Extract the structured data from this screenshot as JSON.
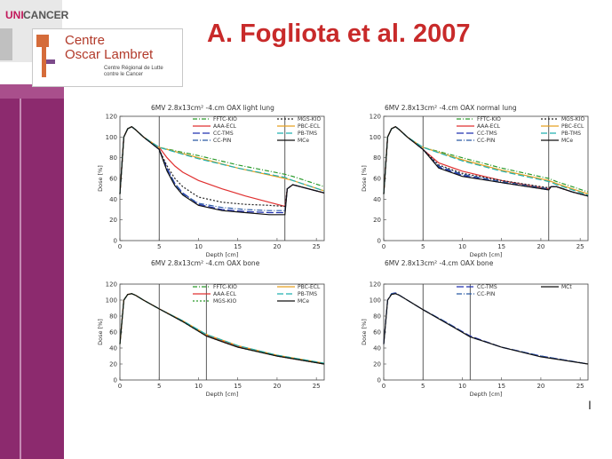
{
  "header": {
    "title": "A. Fogliota et al. 2007",
    "logo_uni": "UNI",
    "logo_cancer": "CANCER",
    "logo_line1": "Centre",
    "logo_line2": "Oscar Lambret",
    "logo_line3": "Centre Régional de Lutte",
    "logo_line4": "contre le Cancer"
  },
  "page_mark": "I",
  "chart_data": [
    {
      "type": "line",
      "title": "6MV 2.8x13cm² -4.cm OAX light lung",
      "xlabel": "Depth [cm]",
      "ylabel": "Dose [%]",
      "xlim": [
        0,
        26
      ],
      "ylim": [
        0,
        120
      ],
      "xticks": [
        0,
        5,
        10,
        15,
        20,
        25
      ],
      "yticks": [
        0,
        20,
        40,
        60,
        80,
        100,
        120
      ],
      "vlines": [
        5,
        21
      ],
      "legend": [
        "FFTC-KIO",
        "AAA-ECL",
        "CC-TMS",
        "CC-PIN",
        "MGS-KIO",
        "PBC-ECL",
        "PB-TMS",
        "MCe"
      ],
      "series": [
        {
          "name": "FFTC-KIO",
          "color": "#2a9a2a",
          "dash": "5,2,1,2",
          "x": [
            0,
            0.5,
            1,
            1.5,
            2,
            3,
            4,
            5,
            10,
            15,
            21,
            22,
            24,
            26
          ],
          "y": [
            45,
            100,
            108,
            110,
            107,
            100,
            95,
            90,
            82,
            73,
            64,
            62,
            57,
            52
          ]
        },
        {
          "name": "AAA-ECL",
          "color": "#e03030",
          "dash": "",
          "x": [
            0,
            0.5,
            1,
            1.5,
            2,
            3,
            4,
            5,
            6,
            7,
            8,
            10,
            13,
            16,
            19,
            21,
            21.3,
            22,
            24,
            26
          ],
          "y": [
            45,
            100,
            108,
            110,
            107,
            100,
            95,
            90,
            80,
            72,
            66,
            58,
            50,
            43,
            37,
            33,
            50,
            54,
            50,
            46
          ]
        },
        {
          "name": "CC-TMS",
          "color": "#2030b0",
          "dash": "8,3",
          "x": [
            0,
            0.5,
            1,
            1.5,
            2,
            3,
            4,
            5,
            6,
            7,
            8,
            10,
            13,
            16,
            19,
            21,
            21.3,
            22,
            24,
            26
          ],
          "y": [
            45,
            100,
            108,
            110,
            107,
            100,
            94,
            88,
            70,
            55,
            46,
            35,
            30,
            28,
            27,
            27,
            50,
            54,
            50,
            46
          ]
        },
        {
          "name": "CC-PIN",
          "color": "#2b5aa5",
          "dash": "6,2,1,2",
          "x": [
            0,
            0.5,
            1,
            1.5,
            2,
            3,
            4,
            5,
            6,
            7,
            8,
            10,
            13,
            16,
            19,
            21,
            21.3,
            22,
            24,
            26
          ],
          "y": [
            45,
            100,
            108,
            110,
            107,
            100,
            94,
            88,
            68,
            55,
            45,
            36,
            32,
            30,
            29,
            29,
            50,
            54,
            50,
            46
          ]
        },
        {
          "name": "MGS-KIO",
          "color": "#222222",
          "dash": "2,2",
          "x": [
            0,
            0.5,
            1,
            1.5,
            2,
            3,
            4,
            5,
            6,
            7,
            8,
            10,
            13,
            16,
            19,
            21,
            21.3,
            22,
            24,
            26
          ],
          "y": [
            45,
            100,
            108,
            110,
            107,
            100,
            94,
            88,
            72,
            60,
            52,
            42,
            37,
            35,
            34,
            33,
            50,
            54,
            50,
            46
          ]
        },
        {
          "name": "PBC-ECL",
          "color": "#e8a020",
          "dash": "",
          "x": [
            0,
            0.5,
            1,
            1.5,
            2,
            3,
            4,
            5,
            10,
            15,
            21,
            22,
            24,
            26
          ],
          "y": [
            45,
            100,
            108,
            110,
            107,
            100,
            95,
            90,
            80,
            70,
            60,
            58,
            53,
            48
          ]
        },
        {
          "name": "PB-TMS",
          "color": "#20b0b0",
          "dash": "7,3",
          "x": [
            0,
            0.5,
            1,
            1.5,
            2,
            3,
            4,
            5,
            10,
            15,
            21,
            22,
            24,
            26
          ],
          "y": [
            45,
            100,
            108,
            110,
            107,
            100,
            95,
            90,
            79,
            70,
            61,
            58,
            53,
            48
          ]
        },
        {
          "name": "MCe",
          "color": "#111111",
          "dash": "",
          "x": [
            0,
            0.5,
            1,
            1.5,
            2,
            3,
            4,
            5,
            6,
            7,
            8,
            10,
            13,
            16,
            19,
            21,
            21.3,
            22,
            24,
            26
          ],
          "y": [
            45,
            100,
            108,
            110,
            107,
            100,
            94,
            88,
            67,
            53,
            44,
            34,
            29,
            27,
            25,
            25,
            50,
            54,
            50,
            46
          ]
        }
      ]
    },
    {
      "type": "line",
      "title": "6MV 2.8x13cm² -4.cm OAX normal lung",
      "xlabel": "Depth [cm]",
      "ylabel": "Dose [%]",
      "xlim": [
        0,
        26
      ],
      "ylim": [
        0,
        120
      ],
      "xticks": [
        0,
        5,
        10,
        15,
        20,
        25
      ],
      "yticks": [
        0,
        20,
        40,
        60,
        80,
        100,
        120
      ],
      "vlines": [
        5,
        21
      ],
      "legend": [
        "FFTC-KIO",
        "AAA-ECL",
        "CC-TMS",
        "CC-PIN",
        "MGS-KIO",
        "PBC-ECL",
        "PB-TMS",
        "MCe"
      ],
      "series": [
        {
          "name": "FFTC-KIO",
          "color": "#2a9a2a",
          "dash": "5,2,1,2",
          "x": [
            0,
            0.5,
            1,
            1.5,
            2,
            3,
            4,
            5,
            10,
            15,
            21,
            22,
            24,
            26
          ],
          "y": [
            45,
            100,
            108,
            110,
            107,
            100,
            95,
            90,
            80,
            70,
            60,
            57,
            52,
            47
          ]
        },
        {
          "name": "AAA-ECL",
          "color": "#e03030",
          "dash": "",
          "x": [
            0,
            0.5,
            1,
            1.5,
            2,
            3,
            4,
            5,
            7,
            10,
            15,
            21,
            21.3,
            22,
            24,
            26
          ],
          "y": [
            45,
            100,
            108,
            110,
            107,
            100,
            94,
            88,
            75,
            67,
            58,
            50,
            52,
            52,
            47,
            43
          ]
        },
        {
          "name": "CC-TMS",
          "color": "#2030b0",
          "dash": "8,3",
          "x": [
            0,
            0.5,
            1,
            1.5,
            2,
            3,
            4,
            5,
            7,
            10,
            15,
            21,
            21.3,
            22,
            24,
            26
          ],
          "y": [
            45,
            100,
            108,
            110,
            107,
            100,
            94,
            88,
            71,
            63,
            56,
            49,
            52,
            52,
            47,
            43
          ]
        },
        {
          "name": "CC-PIN",
          "color": "#2b5aa5",
          "dash": "6,2,1,2",
          "x": [
            0,
            0.5,
            1,
            1.5,
            2,
            3,
            4,
            5,
            7,
            10,
            15,
            21,
            21.3,
            22,
            24,
            26
          ],
          "y": [
            45,
            100,
            108,
            110,
            107,
            100,
            94,
            88,
            72,
            64,
            57,
            50,
            52,
            52,
            47,
            43
          ]
        },
        {
          "name": "MGS-KIO",
          "color": "#222222",
          "dash": "2,2",
          "x": [
            0,
            0.5,
            1,
            1.5,
            2,
            3,
            4,
            5,
            7,
            10,
            15,
            21,
            21.3,
            22,
            24,
            26
          ],
          "y": [
            45,
            100,
            108,
            110,
            107,
            100,
            94,
            88,
            73,
            65,
            58,
            51,
            52,
            52,
            47,
            43
          ]
        },
        {
          "name": "PBC-ECL",
          "color": "#e8a020",
          "dash": "",
          "x": [
            0,
            0.5,
            1,
            1.5,
            2,
            3,
            4,
            5,
            10,
            15,
            21,
            22,
            24,
            26
          ],
          "y": [
            45,
            100,
            108,
            110,
            107,
            100,
            95,
            90,
            78,
            68,
            58,
            55,
            50,
            45
          ]
        },
        {
          "name": "PB-TMS",
          "color": "#20b0b0",
          "dash": "7,3",
          "x": [
            0,
            0.5,
            1,
            1.5,
            2,
            3,
            4,
            5,
            10,
            15,
            21,
            22,
            24,
            26
          ],
          "y": [
            45,
            100,
            108,
            110,
            107,
            100,
            95,
            90,
            77,
            67,
            57,
            54,
            49,
            44
          ]
        },
        {
          "name": "MCe",
          "color": "#111111",
          "dash": "",
          "x": [
            0,
            0.5,
            1,
            1.5,
            2,
            3,
            4,
            5,
            7,
            10,
            15,
            21,
            21.3,
            22,
            24,
            26
          ],
          "y": [
            45,
            100,
            108,
            110,
            107,
            100,
            94,
            88,
            70,
            62,
            56,
            49,
            52,
            52,
            47,
            43
          ]
        }
      ]
    },
    {
      "type": "line",
      "title": "6MV 2.8x13cm² -4.cm OAX bone",
      "xlabel": "Depth [cm]",
      "ylabel": "Dose [%]",
      "xlim": [
        0,
        26
      ],
      "ylim": [
        0,
        120
      ],
      "xticks": [
        0,
        5,
        10,
        15,
        20,
        25
      ],
      "yticks": [
        0,
        20,
        40,
        60,
        80,
        100,
        120
      ],
      "vlines": [
        5,
        11
      ],
      "legend": [
        "FFTC-KIO",
        "AAA-ECL",
        "MGS-KIO",
        "PBC-ECL",
        "PB-TMS",
        "MCe"
      ],
      "series": [
        {
          "name": "FFTC-KIO",
          "color": "#2a9a2a",
          "dash": "5,2,1,2",
          "x": [
            0,
            0.5,
            1,
            1.5,
            2,
            3,
            5,
            8,
            11,
            15,
            20,
            26
          ],
          "y": [
            45,
            100,
            107,
            108,
            106,
            100,
            89,
            74,
            56,
            42,
            30,
            20
          ]
        },
        {
          "name": "AAA-ECL",
          "color": "#e03030",
          "dash": "",
          "x": [
            0,
            0.5,
            1,
            1.5,
            2,
            3,
            5,
            8,
            11,
            15,
            20,
            26
          ],
          "y": [
            45,
            100,
            107,
            108,
            106,
            100,
            89,
            74,
            56,
            42,
            30,
            20
          ]
        },
        {
          "name": "MGS-KIO",
          "color": "#2a9a2a",
          "dash": "2,2",
          "x": [
            0,
            0.5,
            1,
            1.5,
            2,
            3,
            5,
            8,
            11,
            15,
            20,
            26
          ],
          "y": [
            45,
            100,
            107,
            108,
            106,
            100,
            89,
            73,
            55,
            41,
            30,
            20
          ]
        },
        {
          "name": "PBC-ECL",
          "color": "#e8a020",
          "dash": "",
          "x": [
            0,
            0.5,
            1,
            1.5,
            2,
            3,
            5,
            8,
            11,
            15,
            20,
            26
          ],
          "y": [
            45,
            100,
            107,
            108,
            106,
            100,
            89,
            74,
            57,
            43,
            31,
            21
          ]
        },
        {
          "name": "PB-TMS",
          "color": "#20b0b0",
          "dash": "7,3",
          "x": [
            0,
            0.5,
            1,
            1.5,
            2,
            3,
            5,
            8,
            11,
            15,
            20,
            26
          ],
          "y": [
            45,
            100,
            107,
            108,
            106,
            100,
            89,
            74,
            57,
            43,
            31,
            21
          ]
        },
        {
          "name": "MCe",
          "color": "#111111",
          "dash": "",
          "x": [
            0,
            0.5,
            1,
            1.5,
            2,
            3,
            5,
            8,
            11,
            15,
            20,
            26
          ],
          "y": [
            45,
            100,
            107,
            108,
            106,
            100,
            89,
            73,
            55,
            41,
            30,
            20
          ]
        }
      ]
    },
    {
      "type": "line",
      "title": "6MV 2.8x13cm² -4.cm OAX bone",
      "xlabel": "Depth [cm]",
      "ylabel": "Dose [%]",
      "xlim": [
        0,
        26
      ],
      "ylim": [
        0,
        120
      ],
      "xticks": [
        0,
        5,
        10,
        15,
        20,
        25
      ],
      "yticks": [
        0,
        20,
        40,
        60,
        80,
        100,
        120
      ],
      "vlines": [
        5,
        11
      ],
      "legend": [
        "CC-TMS",
        "CC-PIN",
        "MCt"
      ],
      "series": [
        {
          "name": "CC-TMS",
          "color": "#2030b0",
          "dash": "8,3",
          "x": [
            0,
            0.5,
            1,
            1.5,
            2,
            3,
            5,
            8,
            11,
            15,
            20,
            26
          ],
          "y": [
            45,
            100,
            108,
            109,
            106,
            100,
            88,
            72,
            55,
            41,
            30,
            20
          ]
        },
        {
          "name": "CC-PIN",
          "color": "#2b5aa5",
          "dash": "6,2,1,2",
          "x": [
            0,
            0.5,
            1,
            1.5,
            2,
            3,
            5,
            8,
            11,
            15,
            20,
            26
          ],
          "y": [
            45,
            100,
            108,
            109,
            106,
            100,
            88,
            72,
            54,
            41,
            30,
            20
          ]
        },
        {
          "name": "MCt",
          "color": "#111111",
          "dash": "",
          "x": [
            0,
            0.5,
            1,
            1.5,
            2,
            3,
            5,
            8,
            11,
            15,
            20,
            26
          ],
          "y": [
            45,
            100,
            107,
            108,
            106,
            100,
            88,
            71,
            54,
            41,
            29,
            20
          ]
        }
      ]
    }
  ]
}
